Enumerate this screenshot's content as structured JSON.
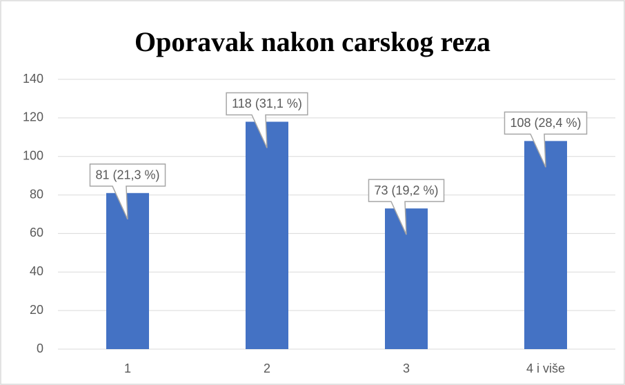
{
  "chart_data": {
    "type": "bar",
    "title": "Oporavak nakon carskog reza",
    "categories": [
      "1",
      "2",
      "3",
      "4 i više"
    ],
    "values": [
      81,
      118,
      73,
      108
    ],
    "value_labels": [
      "81 (21,3 %)",
      "118 (31,1 %)",
      "73 (19,2 %)",
      "108 (28,4 %)"
    ],
    "color": "#4472c4",
    "ylim": [
      0,
      140
    ],
    "yticks": [
      0,
      20,
      40,
      60,
      80,
      100,
      120,
      140
    ],
    "grid": true
  }
}
